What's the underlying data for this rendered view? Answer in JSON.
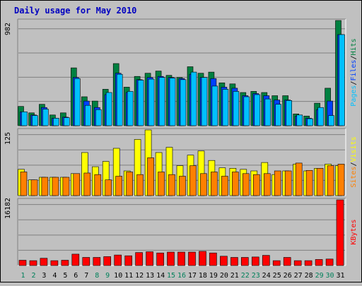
{
  "chart_data": [
    {
      "type": "bar",
      "title": "Daily usage for May 2010",
      "ymax_label": "982",
      "ylim": [
        0,
        982
      ],
      "categories": [
        "1",
        "2",
        "3",
        "4",
        "5",
        "6",
        "7",
        "8",
        "9",
        "10",
        "11",
        "12",
        "13",
        "14",
        "15",
        "16",
        "17",
        "18",
        "19",
        "20",
        "21",
        "22",
        "23",
        "24",
        "25",
        "26",
        "27",
        "28",
        "29",
        "30",
        "31"
      ],
      "weekend_days": [
        "1",
        "2",
        "8",
        "9",
        "15",
        "16",
        "22",
        "23",
        "29",
        "30"
      ],
      "legend": [
        "Pages",
        "/",
        "Files",
        "/",
        "Hits"
      ],
      "series": [
        {
          "name": "Hits",
          "color": "#008040",
          "values": [
            180,
            120,
            200,
            100,
            120,
            540,
            270,
            230,
            340,
            580,
            360,
            460,
            490,
            510,
            470,
            450,
            550,
            490,
            500,
            400,
            390,
            310,
            320,
            310,
            280,
            280,
            110,
            90,
            210,
            350,
            982
          ]
        },
        {
          "name": "Files",
          "color": "#0040ff",
          "values": [
            130,
            100,
            170,
            70,
            80,
            450,
            230,
            170,
            290,
            490,
            310,
            430,
            450,
            460,
            450,
            440,
            480,
            450,
            440,
            360,
            350,
            280,
            300,
            280,
            240,
            240,
            90,
            70,
            150,
            230,
            850
          ]
        },
        {
          "name": "Pages",
          "color": "#00c0ff",
          "values": [
            130,
            95,
            155,
            70,
            75,
            440,
            190,
            150,
            310,
            480,
            320,
            425,
            435,
            450,
            445,
            430,
            500,
            450,
            370,
            340,
            320,
            270,
            290,
            250,
            200,
            235,
            100,
            65,
            170,
            95,
            850
          ]
        }
      ]
    },
    {
      "type": "bar",
      "ymax_label": "125",
      "ylim": [
        0,
        125
      ],
      "legend": [
        "Sites",
        "/",
        "Visits"
      ],
      "series": [
        {
          "name": "Visits",
          "color": "#ffff00",
          "values": [
            50,
            30,
            35,
            35,
            35,
            42,
            82,
            55,
            65,
            90,
            47,
            107,
            125,
            82,
            92,
            57,
            77,
            85,
            67,
            53,
            52,
            50,
            47,
            63,
            40,
            47,
            60,
            47,
            52,
            60,
            57
          ]
        },
        {
          "name": "Sites",
          "color": "#ff8000",
          "values": [
            45,
            30,
            35,
            35,
            35,
            42,
            43,
            40,
            30,
            37,
            45,
            40,
            72,
            45,
            40,
            37,
            57,
            42,
            45,
            37,
            45,
            42,
            40,
            42,
            47,
            47,
            62,
            48,
            52,
            57,
            60
          ]
        }
      ]
    },
    {
      "type": "bar",
      "ymax_label": "16182",
      "ylim": [
        0,
        16182
      ],
      "legend": [
        "KBytes"
      ],
      "series": [
        {
          "name": "KBytes",
          "color": "#ff0000",
          "values": [
            1300,
            1200,
            1800,
            1200,
            1300,
            2800,
            2000,
            2000,
            2200,
            2600,
            2400,
            3200,
            3400,
            3100,
            3300,
            3300,
            3300,
            3500,
            3100,
            2300,
            2000,
            2000,
            2100,
            2500,
            1200,
            2000,
            1200,
            1200,
            1500,
            1600,
            16182
          ]
        }
      ]
    }
  ]
}
